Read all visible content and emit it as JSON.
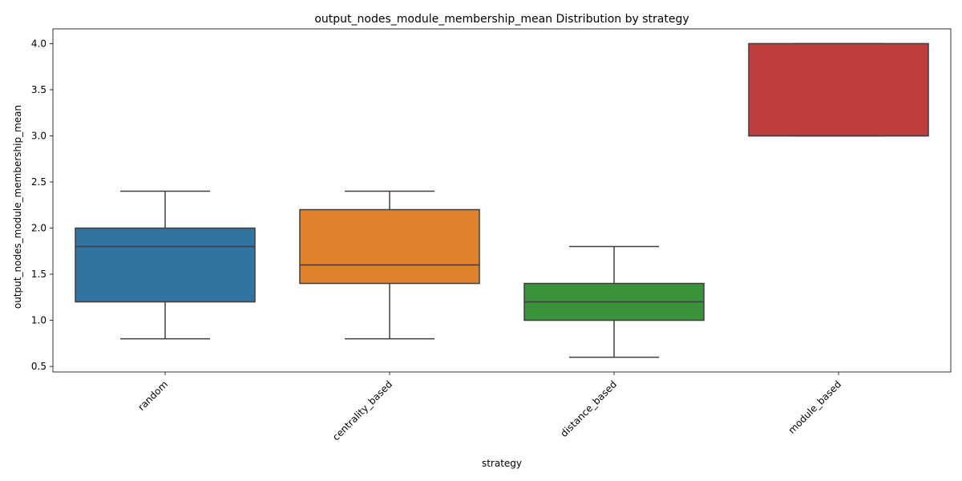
{
  "chart_data": {
    "type": "box",
    "title": "output_nodes_module_membership_mean Distribution by strategy",
    "xlabel": "strategy",
    "ylabel": "output_nodes_module_membership_mean",
    "ylim": [
      0.44,
      4.16
    ],
    "yticks": [
      0.5,
      1.0,
      1.5,
      2.0,
      2.5,
      3.0,
      3.5,
      4.0
    ],
    "ytick_labels": [
      "0.5",
      "1.0",
      "1.5",
      "2.0",
      "2.5",
      "3.0",
      "3.5",
      "4.0"
    ],
    "grid": false,
    "categories": [
      "random",
      "centrality_based",
      "distance_based",
      "module_based"
    ],
    "boxes": [
      {
        "category": "random",
        "whisker_low": 0.8,
        "q1": 1.2,
        "median": 1.8,
        "q3": 2.0,
        "whisker_high": 2.4,
        "color": "#3274a1"
      },
      {
        "category": "centrality_based",
        "whisker_low": 0.8,
        "q1": 1.4,
        "median": 1.6,
        "q3": 2.2,
        "whisker_high": 2.4,
        "color": "#e1812c"
      },
      {
        "category": "distance_based",
        "whisker_low": 0.6,
        "q1": 1.0,
        "median": 1.2,
        "q3": 1.4,
        "whisker_high": 1.8,
        "color": "#3a923a"
      },
      {
        "category": "module_based",
        "whisker_low": 3.0,
        "q1": 3.0,
        "median": 3.0,
        "q3": 4.0,
        "whisker_high": 4.0,
        "color": "#c03d3e"
      }
    ]
  }
}
